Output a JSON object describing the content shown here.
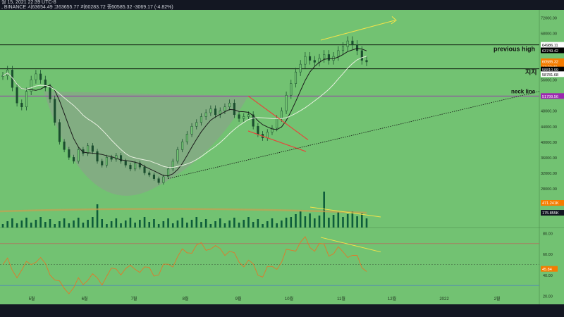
{
  "header": {
    "line1": "월 15, 2021 22:39 UTC-8",
    "line2": ", BINANCE  시63654.49  고63655.77  저60283.72  종60585.32  -3069.17 (-4.82%)"
  },
  "colors": {
    "panel_bg": "#72c272",
    "frame_bg": "#131722",
    "candle": "#1a4d2e",
    "volume": "#0d5c3a",
    "ema_black": "#1b1b1b",
    "ema_white": "#e8f0e0",
    "rsi": "#e0792a",
    "trend_yellow": "#f2e24a",
    "wedge_red": "#e8443a",
    "neck_purple": "#9c27b0"
  },
  "chart_data": {
    "type": "candlestick",
    "price_axis": {
      "ticks": [
        72000,
        68000,
        64000,
        60000,
        56000,
        52000,
        48000,
        44000,
        40000,
        36000,
        32000,
        28000,
        24000
      ],
      "ylim": [
        21000,
        74000
      ]
    },
    "x_labels": [
      "5월",
      "6월",
      "7월",
      "8월",
      "9월",
      "10월",
      "11월",
      "12월",
      "2022",
      "2월"
    ],
    "levels": [
      {
        "name": "previous high",
        "value": 64986.11,
        "color": "#000000"
      },
      {
        "name": "지지",
        "value": 58810.99,
        "color": "#000000"
      },
      {
        "name": "neck line",
        "value": 51799.56,
        "color": "#9c27b0"
      }
    ],
    "price_labels": [
      {
        "text": "64986.11",
        "bg": "#ffffff",
        "fg": "#000000"
      },
      {
        "text": "63749.42",
        "bg": "#000000",
        "fg": "#ffffff"
      },
      {
        "text": "60585.32",
        "bg": "#f57c00",
        "fg": "#ffffff"
      },
      {
        "text": "17:20:40",
        "bg": "#f57c00",
        "fg": "#ffffff"
      },
      {
        "text": "58810.99",
        "bg": "#000000",
        "fg": "#ffffff"
      },
      {
        "text": "58781.68",
        "bg": "#ffffff",
        "fg": "#000000"
      },
      {
        "text": "51799.56",
        "bg": "#9c27b0",
        "fg": "#ffffff"
      }
    ],
    "close_path": [
      [
        57000,
        58500,
        54000,
        50000,
        49000,
        53000,
        56000,
        57500,
        56000,
        54000,
        51000
      ],
      [
        45000,
        40000,
        38000,
        36000,
        35000,
        38000,
        37000,
        39000,
        37500,
        35000,
        34000
      ],
      [
        36000,
        35500,
        36500,
        35000,
        34000,
        33000,
        34500,
        33500,
        32000,
        31500,
        30500,
        29500
      ],
      [
        31000,
        33000,
        35000,
        38000,
        40000,
        42000,
        44000,
        45000,
        46500,
        47500,
        48500,
        47000,
        48000,
        49000,
        50000
      ],
      [
        47000,
        46000,
        46500,
        47000,
        44000,
        42000,
        41000,
        42500,
        43500,
        46000
      ],
      [
        48000,
        52000,
        55000,
        58000,
        60000,
        62000,
        61000,
        60500,
        61500,
        62500
      ],
      [
        61000,
        62000,
        63500,
        64500,
        66000,
        65000,
        63500,
        61000,
        60585.32
      ]
    ],
    "volume_axis": {
      "labels": [
        "471.241K",
        "175.855K"
      ]
    },
    "rsi_axis": {
      "ticks": [
        80.0,
        60.0,
        40.0,
        20.0
      ],
      "last_value": "45.84"
    }
  },
  "annotations": {
    "previous_high": "previous high",
    "support": "지지",
    "neck_line": "neck line"
  }
}
